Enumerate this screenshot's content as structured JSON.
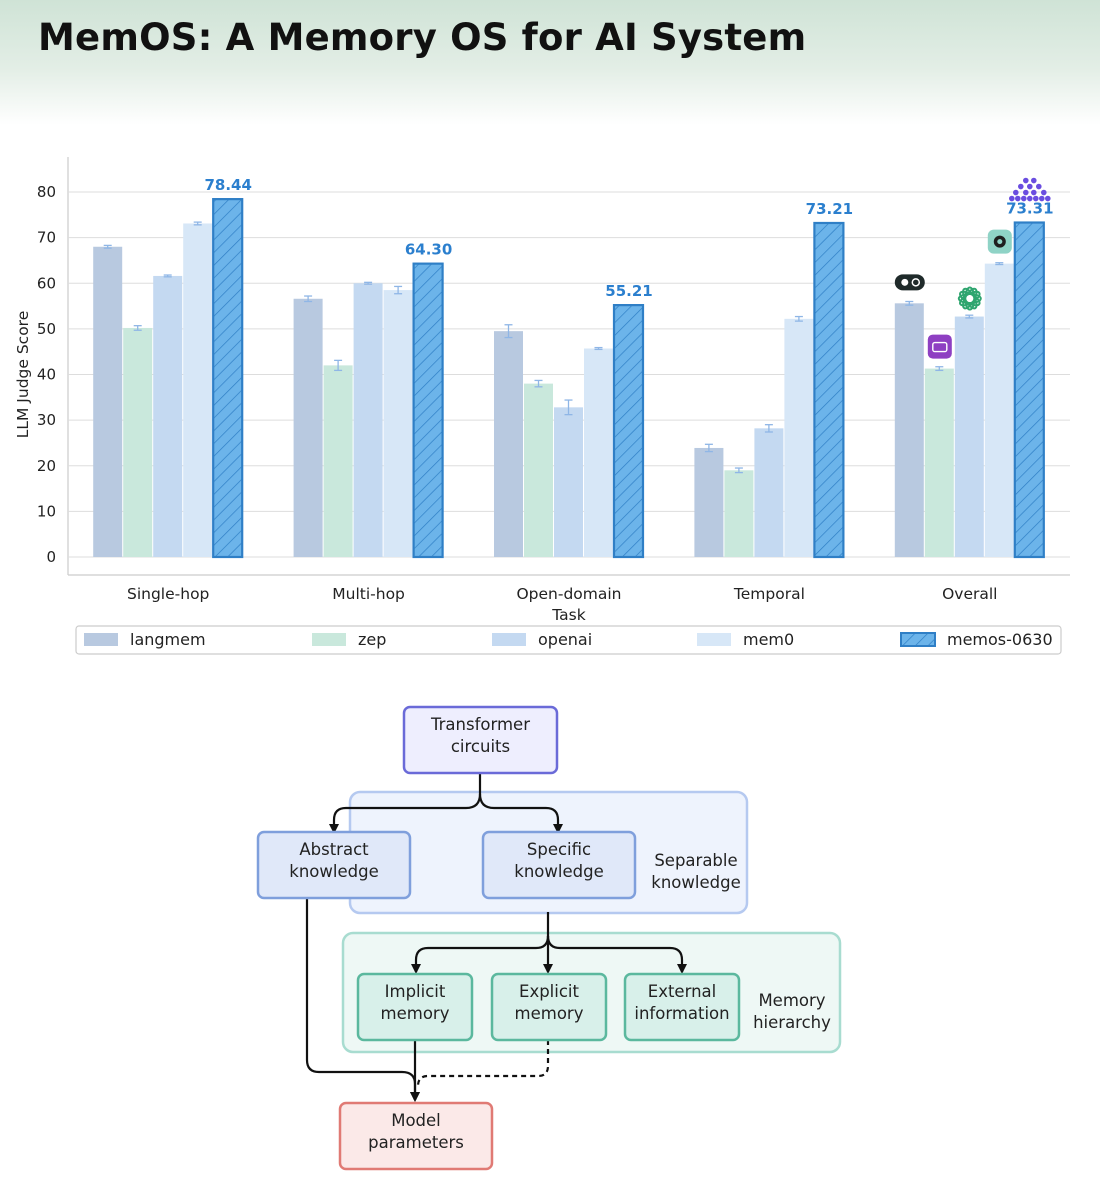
{
  "title": "MemOS: A Memory OS for AI System",
  "chart_data": {
    "type": "bar",
    "ylabel": "LLM Judge Score",
    "xlabel": "Task",
    "ylim": [
      0,
      80
    ],
    "yticks": [
      0,
      10,
      20,
      30,
      40,
      50,
      60,
      70,
      80
    ],
    "grid": true,
    "legend_position": "bottom",
    "categories": [
      "Single-hop",
      "Multi-hop",
      "Open-domain",
      "Temporal",
      "Overall"
    ],
    "series": [
      {
        "name": "langmem",
        "color": "#b8c9e0",
        "values": [
          68.0,
          56.6,
          49.5,
          23.9,
          55.6
        ],
        "errors": [
          0.3,
          0.6,
          1.4,
          0.8,
          0.4
        ]
      },
      {
        "name": "zep",
        "color": "#c9e8dc",
        "values": [
          50.2,
          42.0,
          38.0,
          19.0,
          41.3
        ],
        "errors": [
          0.5,
          1.1,
          0.7,
          0.5,
          0.4
        ]
      },
      {
        "name": "openai",
        "color": "#c4d9f1",
        "values": [
          61.6,
          60.0,
          32.8,
          28.2,
          52.7
        ],
        "errors": [
          0.2,
          0.2,
          1.6,
          0.8,
          0.3
        ]
      },
      {
        "name": "mem0",
        "color": "#d7e7f7",
        "values": [
          73.1,
          58.5,
          45.7,
          52.2,
          64.3
        ],
        "errors": [
          0.3,
          0.8,
          0.2,
          0.5,
          0.2
        ]
      },
      {
        "name": "memos-0630",
        "color": "#6cb4ea",
        "values": [
          78.44,
          64.3,
          55.21,
          73.21,
          73.31
        ],
        "labels": [
          "78.44",
          "64.30",
          "55.21",
          "73.21",
          "73.31"
        ]
      }
    ],
    "colors": {
      "accent": "#2b7fce",
      "hatch_fill": "#6cb4ea",
      "label": "#2b7fce"
    },
    "overall_icons": [
      "langmem-logo-icon",
      "zep-logo-icon",
      "openai-logo-icon",
      "mem0-logo-icon",
      "memos-logo-icon"
    ]
  },
  "diagram": {
    "nodes": {
      "transformer": "Transformer\ncircuits",
      "abstract": "Abstract\nknowledge",
      "specific": "Specific\nknowledge",
      "separable": "Separable\nknowledge",
      "implicit": "Implicit\nmemory",
      "explicit": "Explicit\nmemory",
      "external": "External\ninformation",
      "hierarchy": "Memory\nhierarchy",
      "params": "Model\nparameters"
    },
    "colors": {
      "top_border": "#6a6ad8",
      "top_fill": "#eeeefe",
      "blue_border": "#7f9fdc",
      "blue_fill": "#e0e8f9",
      "group_blue_border": "#b5c9f0",
      "group_blue_fill": "#eef3fd",
      "green_border": "#5bb89e",
      "green_fill": "#d8f0ea",
      "group_green_border": "#a8dcd0",
      "group_green_fill": "#eef8f5",
      "red_border": "#e07a74",
      "red_fill": "#fbe9e8"
    }
  }
}
